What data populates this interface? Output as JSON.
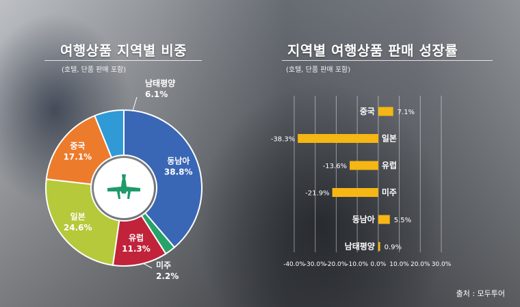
{
  "pie": {
    "title": "여행상품 지역별 비중",
    "note": "(호텔, 단품 판매 포함)"
  },
  "bars": {
    "title": "지역별 여행상품 판매 성장률",
    "note": "(호텔, 단품 판매 포함)"
  },
  "source": "출처 : 모두투어",
  "colors": {
    "pie_slices": [
      "#3a67b5",
      "#27a36a",
      "#c0233a",
      "#b5c93a",
      "#ec7b2c",
      "#2f9ad6"
    ],
    "bar": "#f6b613",
    "center": "#1f9a6a"
  },
  "chart_data": [
    {
      "type": "pie",
      "categories": [
        "동남아",
        "미주",
        "유럽",
        "일본",
        "중국",
        "남태평양"
      ],
      "values": [
        38.8,
        2.2,
        11.3,
        24.6,
        17.1,
        6.1
      ],
      "labels": [
        "38.8%",
        "2.2%",
        "11.3%",
        "24.6%",
        "17.1%",
        "6.1%"
      ],
      "center_icon": "airplane-icon"
    },
    {
      "type": "bar",
      "orientation": "horizontal",
      "categories": [
        "중국",
        "일본",
        "유럽",
        "미주",
        "동남아",
        "남태평양"
      ],
      "values": [
        7.1,
        -38.3,
        -13.6,
        -21.9,
        5.5,
        0.9
      ],
      "labels": [
        "7.1%",
        "-38.3%",
        "-13.6%",
        "-21.9%",
        "5.5%",
        "0.9%"
      ],
      "xlim": [
        -40,
        30
      ],
      "xticks": [
        "-40.0%",
        "-30.0%",
        "-20.0%",
        "-10.0%",
        "0.0%",
        "10.0%",
        "20.0%",
        "30.0%"
      ],
      "grid": true
    }
  ]
}
